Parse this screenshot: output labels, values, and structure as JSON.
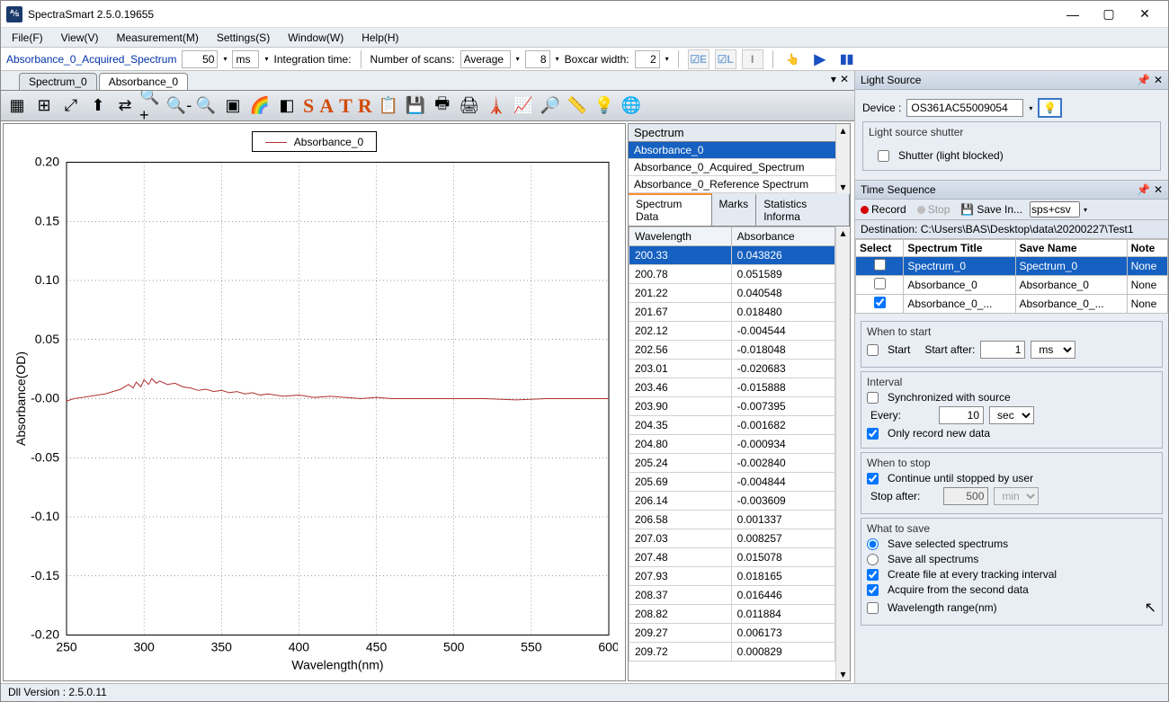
{
  "app": {
    "title": "SpectraSmart 2.5.0.19655",
    "logo_text": "⅍"
  },
  "menubar": [
    "File(F)",
    "View(V)",
    "Measurement(M)",
    "Settings(S)",
    "Window(W)",
    "Help(H)"
  ],
  "acqbar": {
    "spectrum_name": "Absorbance_0_Acquired_Spectrum",
    "int_time_value": "50",
    "int_time_unit": "ms",
    "int_time_label": "Integration time:",
    "scans_label": "Number of scans:",
    "scans_mode": "Average",
    "scans_value": "8",
    "boxcar_label": "Boxcar width:",
    "boxcar_value": "2"
  },
  "tabs": {
    "items": [
      "Spectrum_0",
      "Absorbance_0"
    ],
    "active": 1
  },
  "toolbar_icons": [
    "grid1",
    "grid2",
    "expand",
    "up",
    "swap",
    "zoom-in",
    "zoom-out",
    "zoom-dot",
    "screen",
    "rainbow",
    "gray"
  ],
  "satr": [
    "S",
    "A",
    "T",
    "R"
  ],
  "toolbar_icons2": [
    "copy",
    "save",
    "print",
    "printer",
    "peak",
    "line",
    "find",
    "ruler",
    "bulb",
    "globe"
  ],
  "chart": {
    "legend": "Absorbance_0",
    "xlabel": "Wavelength(nm)",
    "ylabel": "Absorbance(OD)",
    "xmin": 250,
    "xmax": 600,
    "xtick": 50,
    "ymin": -0.2,
    "ymax": 0.2,
    "ytick": 0.05,
    "line_color": "#b03030",
    "series": [
      [
        250,
        -0.002
      ],
      [
        255,
        0.0
      ],
      [
        260,
        0.001
      ],
      [
        265,
        0.002
      ],
      [
        270,
        0.003
      ],
      [
        275,
        0.004
      ],
      [
        280,
        0.006
      ],
      [
        285,
        0.008
      ],
      [
        290,
        0.012
      ],
      [
        293,
        0.009
      ],
      [
        295,
        0.014
      ],
      [
        298,
        0.01
      ],
      [
        300,
        0.016
      ],
      [
        303,
        0.012
      ],
      [
        305,
        0.017
      ],
      [
        308,
        0.013
      ],
      [
        310,
        0.015
      ],
      [
        315,
        0.012
      ],
      [
        320,
        0.013
      ],
      [
        325,
        0.01
      ],
      [
        330,
        0.009
      ],
      [
        335,
        0.007
      ],
      [
        340,
        0.008
      ],
      [
        345,
        0.006
      ],
      [
        350,
        0.007
      ],
      [
        355,
        0.005
      ],
      [
        360,
        0.006
      ],
      [
        365,
        0.004
      ],
      [
        370,
        0.005
      ],
      [
        375,
        0.003
      ],
      [
        380,
        0.004
      ],
      [
        390,
        0.002
      ],
      [
        400,
        0.003
      ],
      [
        410,
        0.001
      ],
      [
        420,
        0.002
      ],
      [
        430,
        0.001
      ],
      [
        440,
        0.0
      ],
      [
        450,
        0.001
      ],
      [
        460,
        0.0
      ],
      [
        480,
        0.0
      ],
      [
        500,
        0.0
      ],
      [
        520,
        0.0
      ],
      [
        540,
        -0.001
      ],
      [
        560,
        0.0
      ],
      [
        580,
        0.0
      ],
      [
        600,
        0.0
      ]
    ]
  },
  "datapane": {
    "top_list_header": "Spectrum",
    "top_list": [
      {
        "t": "Absorbance_0",
        "sel": true
      },
      {
        "t": "Absorbance_0_Acquired_Spectrum",
        "sel": false
      },
      {
        "t": "Absorbance_0_Reference Spectrum",
        "sel": false
      }
    ],
    "subtabs": [
      "Spectrum Data",
      "Marks",
      "Statistics Informa"
    ],
    "columns": [
      "Wavelength",
      "Absorbance"
    ],
    "rows": [
      [
        "200.33",
        "0.043826"
      ],
      [
        "200.78",
        "0.051589"
      ],
      [
        "201.22",
        "0.040548"
      ],
      [
        "201.67",
        "0.018480"
      ],
      [
        "202.12",
        "-0.004544"
      ],
      [
        "202.56",
        "-0.018048"
      ],
      [
        "203.01",
        "-0.020683"
      ],
      [
        "203.46",
        "-0.015888"
      ],
      [
        "203.90",
        "-0.007395"
      ],
      [
        "204.35",
        "-0.001682"
      ],
      [
        "204.80",
        "-0.000934"
      ],
      [
        "205.24",
        "-0.002840"
      ],
      [
        "205.69",
        "-0.004844"
      ],
      [
        "206.14",
        "-0.003609"
      ],
      [
        "206.58",
        "0.001337"
      ],
      [
        "207.03",
        "0.008257"
      ],
      [
        "207.48",
        "0.015078"
      ],
      [
        "207.93",
        "0.018165"
      ],
      [
        "208.37",
        "0.016446"
      ],
      [
        "208.82",
        "0.011884"
      ],
      [
        "209.27",
        "0.006173"
      ],
      [
        "209.72",
        "0.000829"
      ]
    ]
  },
  "lightsource": {
    "title": "Light Source",
    "device_label": "Device :",
    "device_value": "OS361AC55009054",
    "shutter_legend": "Light source shutter",
    "shutter_label": "Shutter (light blocked)"
  },
  "timeseq": {
    "title": "Time Sequence",
    "record": "Record",
    "stop": "Stop",
    "savein": "Save In...",
    "format": "sps+csv",
    "dest": "Destination: C:\\Users\\BAS\\Desktop\\data\\20200227\\Test1",
    "cols": [
      "Select",
      "Spectrum Title",
      "Save Name",
      "Note"
    ],
    "rows": [
      {
        "sel": false,
        "checked": false,
        "title": "Spectrum_0",
        "save": "Spectrum_0",
        "note": "None",
        "hi": true
      },
      {
        "sel": false,
        "checked": false,
        "title": "Absorbance_0",
        "save": "Absorbance_0",
        "note": "None",
        "hi": false
      },
      {
        "sel": false,
        "checked": true,
        "title": "Absorbance_0_...",
        "save": "Absorbance_0_...",
        "note": "None",
        "hi": false
      }
    ],
    "when_start": "When to start",
    "start_cb": "Start",
    "start_after_lbl": "Start after:",
    "start_after_val": "1",
    "start_after_unit": "ms",
    "interval": "Interval",
    "sync_label": "Synchronized with source",
    "every_lbl": "Every:",
    "every_val": "10",
    "every_unit": "sec",
    "only_new": "Only record new data",
    "when_stop": "When to stop",
    "continue_lbl": "Continue until stopped by user",
    "stop_after_lbl": "Stop after:",
    "stop_after_val": "500",
    "stop_after_unit": "min",
    "what_save": "What to save",
    "save_sel": "Save selected spectrums",
    "save_all": "Save all spectrums",
    "create_file": "Create file at every tracking interval",
    "acquire_second": "Acquire from the second data",
    "wl_range": "Wavelength range(nm)"
  },
  "status": "Dll Version : 2.5.0.11"
}
